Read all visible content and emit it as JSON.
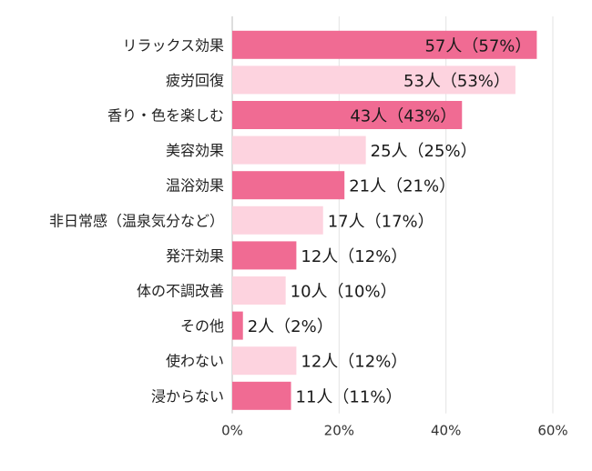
{
  "chart_data": {
    "type": "bar",
    "orientation": "horizontal",
    "categories": [
      "リラックス効果",
      "疲労回復",
      "香り・色を楽しむ",
      "美容効果",
      "温浴効果",
      "非日常感（温泉気分など）",
      "発汗効果",
      "体の不調改善",
      "その他",
      "使わない",
      "浸からない"
    ],
    "values": [
      57,
      53,
      43,
      25,
      21,
      17,
      12,
      10,
      2,
      12,
      11
    ],
    "data_labels": [
      "57人（57%）",
      "53人（53%）",
      "43人（43%）",
      "25人（25%）",
      "21人（21%）",
      "17人（17%）",
      "12人（12%）",
      "10人（10%）",
      "2人（2%）",
      "12人（12%）",
      "11人（11%）"
    ],
    "xlim": [
      0,
      60
    ],
    "xticks": [
      "0%",
      "20%",
      "40%",
      "60%"
    ],
    "grid": true,
    "colors": {
      "dark": "#f06b93",
      "light": "#fdd3df"
    }
  }
}
